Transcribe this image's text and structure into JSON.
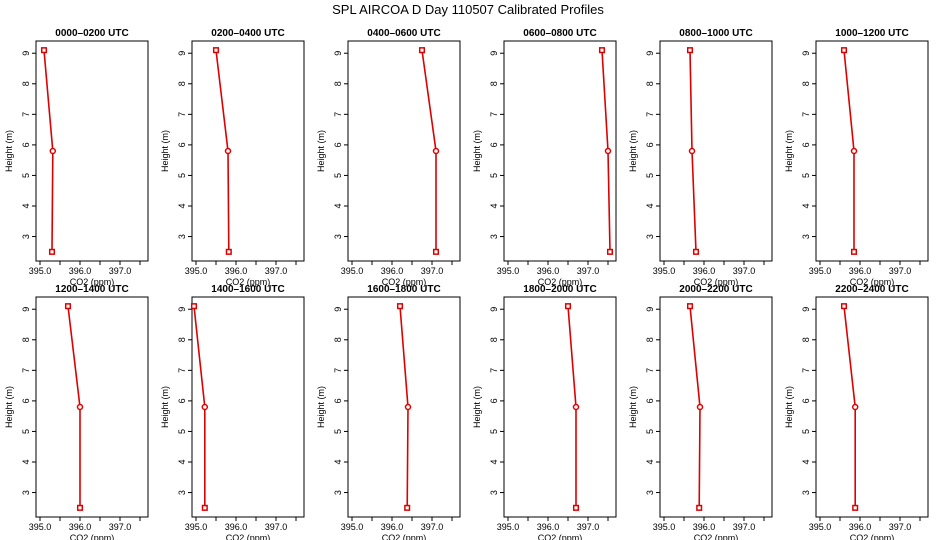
{
  "title": "SPL AIRCOA D  Day 110507  Calibrated Profiles",
  "colors": {
    "profile": "#dd0000",
    "axis": "#000000"
  },
  "chart_data": [
    {
      "type": "line",
      "title": "0000–0200 UTC",
      "xlabel": "CO2 (ppm)",
      "ylabel": "Height (m)",
      "xlim": [
        394.9,
        397.7
      ],
      "ylim": [
        2.2,
        9.4
      ],
      "xticks": [
        "395.0",
        "396.0",
        "397.0"
      ],
      "yticks": [
        "3",
        "4",
        "5",
        "6",
        "7",
        "8",
        "9"
      ],
      "points": [
        {
          "x": 395.1,
          "y": 9.1
        },
        {
          "x": 395.32,
          "y": 5.8
        },
        {
          "x": 395.3,
          "y": 2.5
        }
      ]
    },
    {
      "type": "line",
      "title": "0200–0400 UTC",
      "xlabel": "CO2 (ppm)",
      "ylabel": "Height (m)",
      "xlim": [
        394.9,
        397.7
      ],
      "ylim": [
        2.2,
        9.4
      ],
      "xticks": [
        "395.0",
        "396.0",
        "397.0"
      ],
      "yticks": [
        "3",
        "4",
        "5",
        "6",
        "7",
        "8",
        "9"
      ],
      "points": [
        {
          "x": 395.5,
          "y": 9.1
        },
        {
          "x": 395.8,
          "y": 5.8
        },
        {
          "x": 395.82,
          "y": 2.5
        }
      ]
    },
    {
      "type": "line",
      "title": "0400–0600 UTC",
      "xlabel": "CO2 (ppm)",
      "ylabel": "Height (m)",
      "xlim": [
        394.9,
        397.7
      ],
      "ylim": [
        2.2,
        9.4
      ],
      "xticks": [
        "395.0",
        "396.0",
        "397.0"
      ],
      "yticks": [
        "3",
        "4",
        "5",
        "6",
        "7",
        "8",
        "9"
      ],
      "points": [
        {
          "x": 396.75,
          "y": 9.1
        },
        {
          "x": 397.1,
          "y": 5.8
        },
        {
          "x": 397.1,
          "y": 2.5
        }
      ]
    },
    {
      "type": "line",
      "title": "0600–0800 UTC",
      "xlabel": "CO2 (ppm)",
      "ylabel": "Height (m)",
      "xlim": [
        394.9,
        397.7
      ],
      "ylim": [
        2.2,
        9.4
      ],
      "xticks": [
        "395.0",
        "396.0",
        "397.0"
      ],
      "yticks": [
        "3",
        "4",
        "5",
        "6",
        "7",
        "8",
        "9"
      ],
      "points": [
        {
          "x": 397.35,
          "y": 9.1
        },
        {
          "x": 397.5,
          "y": 5.8
        },
        {
          "x": 397.55,
          "y": 2.5
        }
      ]
    },
    {
      "type": "line",
      "title": "0800–1000 UTC",
      "xlabel": "CO2 (ppm)",
      "ylabel": "Height (m)",
      "xlim": [
        394.9,
        397.7
      ],
      "ylim": [
        2.2,
        9.4
      ],
      "xticks": [
        "395.0",
        "396.0",
        "397.0"
      ],
      "yticks": [
        "3",
        "4",
        "5",
        "6",
        "7",
        "8",
        "9"
      ],
      "points": [
        {
          "x": 395.65,
          "y": 9.1
        },
        {
          "x": 395.7,
          "y": 5.8
        },
        {
          "x": 395.8,
          "y": 2.5
        }
      ]
    },
    {
      "type": "line",
      "title": "1000–1200 UTC",
      "xlabel": "CO2 (ppm)",
      "ylabel": "Height (m)",
      "xlim": [
        394.9,
        397.7
      ],
      "ylim": [
        2.2,
        9.4
      ],
      "xticks": [
        "395.0",
        "396.0",
        "397.0"
      ],
      "yticks": [
        "3",
        "4",
        "5",
        "6",
        "7",
        "8",
        "9"
      ],
      "points": [
        {
          "x": 395.6,
          "y": 9.1
        },
        {
          "x": 395.85,
          "y": 5.8
        },
        {
          "x": 395.85,
          "y": 2.5
        }
      ]
    },
    {
      "type": "line",
      "title": "1200–1400 UTC",
      "xlabel": "CO2 (ppm)",
      "ylabel": "Height (m)",
      "xlim": [
        394.9,
        397.7
      ],
      "ylim": [
        2.2,
        9.4
      ],
      "xticks": [
        "395.0",
        "396.0",
        "397.0"
      ],
      "yticks": [
        "3",
        "4",
        "5",
        "6",
        "7",
        "8",
        "9"
      ],
      "points": [
        {
          "x": 395.7,
          "y": 9.1
        },
        {
          "x": 396.0,
          "y": 5.8
        },
        {
          "x": 396.0,
          "y": 2.5
        }
      ]
    },
    {
      "type": "line",
      "title": "1400–1600 UTC",
      "xlabel": "CO2 (ppm)",
      "ylabel": "Height (m)",
      "xlim": [
        394.9,
        397.7
      ],
      "ylim": [
        2.2,
        9.4
      ],
      "xticks": [
        "395.0",
        "396.0",
        "397.0"
      ],
      "yticks": [
        "3",
        "4",
        "5",
        "6",
        "7",
        "8",
        "9"
      ],
      "points": [
        {
          "x": 394.95,
          "y": 9.1
        },
        {
          "x": 395.22,
          "y": 5.8
        },
        {
          "x": 395.22,
          "y": 2.5
        }
      ]
    },
    {
      "type": "line",
      "title": "1600–1800 UTC",
      "xlabel": "CO2 (ppm)",
      "ylabel": "Height (m)",
      "xlim": [
        394.9,
        397.7
      ],
      "ylim": [
        2.2,
        9.4
      ],
      "xticks": [
        "395.0",
        "396.0",
        "397.0"
      ],
      "yticks": [
        "3",
        "4",
        "5",
        "6",
        "7",
        "8",
        "9"
      ],
      "points": [
        {
          "x": 396.2,
          "y": 9.1
        },
        {
          "x": 396.4,
          "y": 5.8
        },
        {
          "x": 396.38,
          "y": 2.5
        }
      ]
    },
    {
      "type": "line",
      "title": "1800–2000 UTC",
      "xlabel": "CO2 (ppm)",
      "ylabel": "Height (m)",
      "xlim": [
        394.9,
        397.7
      ],
      "ylim": [
        2.2,
        9.4
      ],
      "xticks": [
        "395.0",
        "396.0",
        "397.0"
      ],
      "yticks": [
        "3",
        "4",
        "5",
        "6",
        "7",
        "8",
        "9"
      ],
      "points": [
        {
          "x": 396.5,
          "y": 9.1
        },
        {
          "x": 396.7,
          "y": 5.8
        },
        {
          "x": 396.7,
          "y": 2.5
        }
      ]
    },
    {
      "type": "line",
      "title": "2000–2200 UTC",
      "xlabel": "CO2 (ppm)",
      "ylabel": "Height (m)",
      "xlim": [
        394.9,
        397.7
      ],
      "ylim": [
        2.2,
        9.4
      ],
      "xticks": [
        "395.0",
        "396.0",
        "397.0"
      ],
      "yticks": [
        "3",
        "4",
        "5",
        "6",
        "7",
        "8",
        "9"
      ],
      "points": [
        {
          "x": 395.65,
          "y": 9.1
        },
        {
          "x": 395.9,
          "y": 5.8
        },
        {
          "x": 395.88,
          "y": 2.5
        }
      ]
    },
    {
      "type": "line",
      "title": "2200–2400 UTC",
      "xlabel": "CO2 (ppm)",
      "ylabel": "Height (m)",
      "xlim": [
        394.9,
        397.7
      ],
      "ylim": [
        2.2,
        9.4
      ],
      "xticks": [
        "395.0",
        "396.0",
        "397.0"
      ],
      "yticks": [
        "3",
        "4",
        "5",
        "6",
        "7",
        "8",
        "9"
      ],
      "points": [
        {
          "x": 395.6,
          "y": 9.1
        },
        {
          "x": 395.88,
          "y": 5.8
        },
        {
          "x": 395.88,
          "y": 2.5
        }
      ]
    }
  ]
}
